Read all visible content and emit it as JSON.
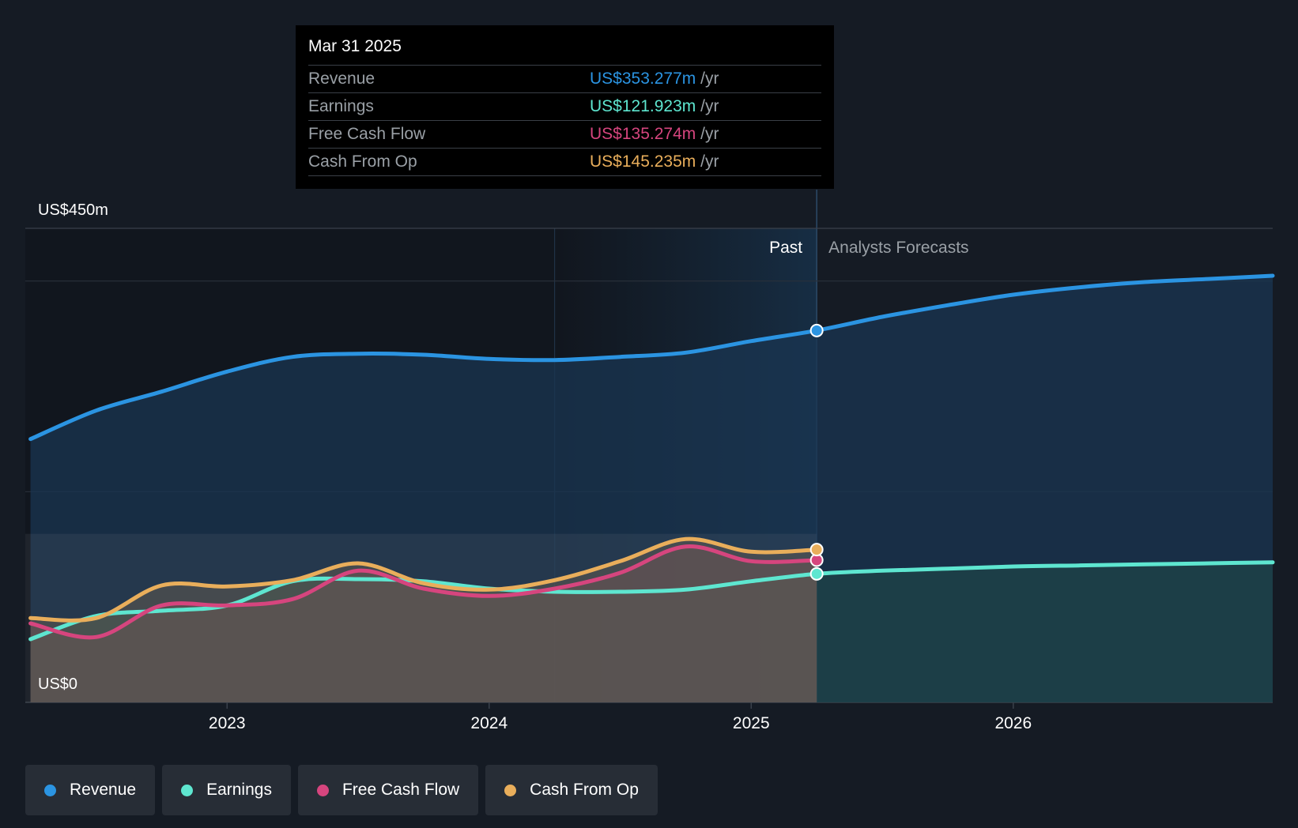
{
  "colors": {
    "revenue": "#2b94e2",
    "earnings": "#5ee6d0",
    "free_cash_flow": "#d6457e",
    "cash_from_op": "#e9ae5b",
    "background": "#151b24"
  },
  "tooltip": {
    "date": "Mar 31 2025",
    "rows": [
      {
        "label": "Revenue",
        "value": "US$353.277m",
        "unit": "/yr"
      },
      {
        "label": "Earnings",
        "value": "US$121.923m",
        "unit": "/yr"
      },
      {
        "label": "Free Cash Flow",
        "value": "US$135.274m",
        "unit": "/yr"
      },
      {
        "label": "Cash From Op",
        "value": "US$145.235m",
        "unit": "/yr"
      }
    ]
  },
  "legend": [
    {
      "label": "Revenue"
    },
    {
      "label": "Earnings"
    },
    {
      "label": "Free Cash Flow"
    },
    {
      "label": "Cash From Op"
    }
  ],
  "chart_data": {
    "type": "line",
    "title": "",
    "ylabel_top": "US$450m",
    "ylabel_bottom": "US$0",
    "ylim": [
      0,
      450
    ],
    "xlim": [
      2022.23,
      2026.99
    ],
    "x_ticks": [
      2023,
      2024,
      2025,
      2026
    ],
    "past_label": "Past",
    "forecast_label": "Analysts Forecasts",
    "past_end_x": 2025.25,
    "highlight_start_x": 2024.25,
    "series": [
      {
        "name": "Revenue",
        "points": [
          [
            2022.25,
            250
          ],
          [
            2022.5,
            277
          ],
          [
            2022.75,
            295
          ],
          [
            2023.0,
            314
          ],
          [
            2023.25,
            328
          ],
          [
            2023.5,
            331
          ],
          [
            2023.75,
            330
          ],
          [
            2024.0,
            326
          ],
          [
            2024.25,
            325
          ],
          [
            2024.5,
            328
          ],
          [
            2024.75,
            332
          ],
          [
            2025.0,
            343
          ],
          [
            2025.25,
            353
          ],
          [
            2025.5,
            366
          ],
          [
            2025.75,
            377
          ],
          [
            2026.0,
            387
          ],
          [
            2026.25,
            394
          ],
          [
            2026.5,
            399
          ],
          [
            2026.75,
            402
          ],
          [
            2026.99,
            405
          ]
        ]
      },
      {
        "name": "Earnings",
        "points": [
          [
            2022.25,
            60
          ],
          [
            2022.5,
            82
          ],
          [
            2022.75,
            87
          ],
          [
            2023.0,
            92
          ],
          [
            2023.25,
            115
          ],
          [
            2023.5,
            117
          ],
          [
            2023.75,
            115
          ],
          [
            2024.0,
            108
          ],
          [
            2024.25,
            105
          ],
          [
            2024.5,
            105
          ],
          [
            2024.75,
            107
          ],
          [
            2025.0,
            115
          ],
          [
            2025.25,
            122
          ],
          [
            2025.5,
            125
          ],
          [
            2025.75,
            127
          ],
          [
            2026.0,
            129
          ],
          [
            2026.25,
            130
          ],
          [
            2026.5,
            131
          ],
          [
            2026.75,
            132
          ],
          [
            2026.99,
            133
          ]
        ]
      },
      {
        "name": "Free Cash Flow",
        "points": [
          [
            2022.25,
            75
          ],
          [
            2022.5,
            62
          ],
          [
            2022.75,
            92
          ],
          [
            2023.0,
            92
          ],
          [
            2023.25,
            98
          ],
          [
            2023.5,
            125
          ],
          [
            2023.75,
            108
          ],
          [
            2024.0,
            101
          ],
          [
            2024.25,
            108
          ],
          [
            2024.5,
            123
          ],
          [
            2024.75,
            148
          ],
          [
            2025.0,
            134
          ],
          [
            2025.25,
            135
          ]
        ]
      },
      {
        "name": "Cash From Op",
        "points": [
          [
            2022.25,
            80
          ],
          [
            2022.5,
            80
          ],
          [
            2022.75,
            111
          ],
          [
            2023.0,
            110
          ],
          [
            2023.25,
            116
          ],
          [
            2023.5,
            132
          ],
          [
            2023.75,
            113
          ],
          [
            2024.0,
            107
          ],
          [
            2024.25,
            116
          ],
          [
            2024.5,
            134
          ],
          [
            2024.75,
            155
          ],
          [
            2025.0,
            143
          ],
          [
            2025.25,
            145
          ]
        ]
      }
    ]
  }
}
